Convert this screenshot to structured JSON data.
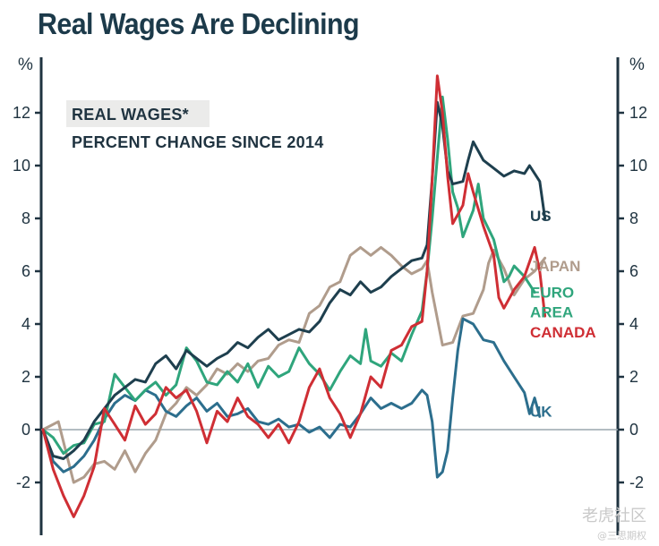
{
  "chart_data": {
    "type": "line",
    "title": "Real Wages Are Declining",
    "subtitle_lines": [
      "REAL WAGES*",
      "PERCENT CHANGE SINCE 2014"
    ],
    "unit_left": "%",
    "unit_right": "%",
    "ylim": [
      -4,
      14
    ],
    "xlim": [
      0,
      100
    ],
    "yticks": [
      -2,
      0,
      2,
      4,
      6,
      8,
      10,
      12
    ],
    "ytick_labels": [
      "-2",
      "0",
      "2",
      "4",
      "6",
      "8",
      "10",
      "12"
    ],
    "grid": false,
    "series": [
      {
        "name": "US",
        "color": "#1e3f4e",
        "points": [
          [
            0,
            0
          ],
          [
            2,
            -1.0
          ],
          [
            4,
            -1.1
          ],
          [
            6,
            -0.8
          ],
          [
            8,
            -0.4
          ],
          [
            10,
            0.3
          ],
          [
            12,
            0.8
          ],
          [
            14,
            1.3
          ],
          [
            16,
            1.6
          ],
          [
            18,
            1.9
          ],
          [
            20,
            1.8
          ],
          [
            22,
            2.5
          ],
          [
            24,
            2.8
          ],
          [
            26,
            2.3
          ],
          [
            28,
            3.0
          ],
          [
            30,
            2.7
          ],
          [
            32,
            2.4
          ],
          [
            34,
            2.7
          ],
          [
            36,
            2.9
          ],
          [
            38,
            3.3
          ],
          [
            40,
            3.1
          ],
          [
            42,
            3.5
          ],
          [
            44,
            3.8
          ],
          [
            46,
            3.4
          ],
          [
            48,
            3.6
          ],
          [
            50,
            3.8
          ],
          [
            52,
            3.7
          ],
          [
            54,
            4.1
          ],
          [
            56,
            4.8
          ],
          [
            58,
            5.3
          ],
          [
            60,
            5.1
          ],
          [
            62,
            5.6
          ],
          [
            64,
            5.2
          ],
          [
            66,
            5.4
          ],
          [
            68,
            5.8
          ],
          [
            70,
            6.1
          ],
          [
            72,
            6.4
          ],
          [
            74,
            6.5
          ],
          [
            75,
            7.0
          ],
          [
            76,
            9.5
          ],
          [
            77,
            12.4
          ],
          [
            78,
            11.5
          ],
          [
            79,
            9.8
          ],
          [
            80,
            9.3
          ],
          [
            82,
            9.4
          ],
          [
            83,
            10.2
          ],
          [
            84,
            10.9
          ],
          [
            86,
            10.2
          ],
          [
            88,
            9.9
          ],
          [
            90,
            9.6
          ],
          [
            92,
            9.8
          ],
          [
            94,
            9.7
          ],
          [
            95,
            10.0
          ],
          [
            97,
            9.4
          ],
          [
            98,
            8.0
          ]
        ]
      },
      {
        "name": "EURO AREA",
        "color": "#2fa57c",
        "points": [
          [
            0,
            0
          ],
          [
            2,
            -0.3
          ],
          [
            4,
            -0.9
          ],
          [
            6,
            -0.6
          ],
          [
            8,
            -0.5
          ],
          [
            10,
            0.2
          ],
          [
            12,
            0.3
          ],
          [
            14,
            2.1
          ],
          [
            16,
            1.6
          ],
          [
            18,
            1.1
          ],
          [
            20,
            1.5
          ],
          [
            22,
            1.8
          ],
          [
            24,
            1.3
          ],
          [
            26,
            1.7
          ],
          [
            28,
            3.1
          ],
          [
            30,
            2.6
          ],
          [
            32,
            1.8
          ],
          [
            34,
            1.7
          ],
          [
            36,
            2.2
          ],
          [
            38,
            1.8
          ],
          [
            40,
            2.5
          ],
          [
            42,
            1.6
          ],
          [
            44,
            2.4
          ],
          [
            46,
            2.0
          ],
          [
            48,
            2.2
          ],
          [
            50,
            3.1
          ],
          [
            52,
            2.5
          ],
          [
            54,
            2.1
          ],
          [
            56,
            1.5
          ],
          [
            58,
            2.2
          ],
          [
            60,
            2.8
          ],
          [
            62,
            2.5
          ],
          [
            63,
            3.8
          ],
          [
            64,
            2.6
          ],
          [
            66,
            2.4
          ],
          [
            68,
            2.9
          ],
          [
            70,
            2.6
          ],
          [
            72,
            3.6
          ],
          [
            74,
            4.5
          ],
          [
            75,
            6.0
          ],
          [
            76,
            8.0
          ],
          [
            77,
            10.3
          ],
          [
            78,
            12.6
          ],
          [
            79,
            11.0
          ],
          [
            80,
            9.0
          ],
          [
            81,
            8.4
          ],
          [
            82,
            7.3
          ],
          [
            84,
            8.3
          ],
          [
            85,
            9.3
          ],
          [
            86,
            8.0
          ],
          [
            88,
            7.2
          ],
          [
            90,
            5.6
          ],
          [
            91,
            5.8
          ],
          [
            92,
            6.2
          ],
          [
            94,
            5.8
          ],
          [
            96,
            5.2
          ]
        ]
      },
      {
        "name": "JAPAN",
        "color": "#b09c8c",
        "points": [
          [
            0,
            0
          ],
          [
            3,
            0.3
          ],
          [
            6,
            -2.0
          ],
          [
            8,
            -1.8
          ],
          [
            10,
            -1.3
          ],
          [
            12,
            -1.2
          ],
          [
            14,
            -1.5
          ],
          [
            16,
            -0.8
          ],
          [
            18,
            -1.6
          ],
          [
            20,
            -0.9
          ],
          [
            22,
            -0.4
          ],
          [
            24,
            0.6
          ],
          [
            26,
            1.0
          ],
          [
            28,
            1.6
          ],
          [
            30,
            1.3
          ],
          [
            32,
            1.7
          ],
          [
            34,
            2.3
          ],
          [
            36,
            2.1
          ],
          [
            38,
            2.5
          ],
          [
            40,
            2.2
          ],
          [
            42,
            2.6
          ],
          [
            44,
            2.7
          ],
          [
            46,
            3.2
          ],
          [
            48,
            3.4
          ],
          [
            50,
            3.3
          ],
          [
            52,
            4.4
          ],
          [
            54,
            4.7
          ],
          [
            56,
            5.4
          ],
          [
            58,
            5.6
          ],
          [
            60,
            6.6
          ],
          [
            62,
            6.9
          ],
          [
            64,
            6.6
          ],
          [
            66,
            6.9
          ],
          [
            68,
            6.6
          ],
          [
            70,
            6.2
          ],
          [
            72,
            5.9
          ],
          [
            74,
            6.1
          ],
          [
            75,
            6.4
          ],
          [
            76,
            5.2
          ],
          [
            78,
            3.2
          ],
          [
            80,
            3.3
          ],
          [
            82,
            4.3
          ],
          [
            84,
            4.4
          ],
          [
            86,
            5.3
          ],
          [
            87,
            6.3
          ],
          [
            88,
            6.8
          ],
          [
            90,
            6.1
          ],
          [
            92,
            5.1
          ],
          [
            94,
            5.7
          ],
          [
            96,
            6.0
          ],
          [
            98,
            6.5
          ]
        ]
      },
      {
        "name": "CANADA",
        "color": "#cf2e34",
        "points": [
          [
            0,
            0
          ],
          [
            2,
            -1.5
          ],
          [
            4,
            -2.5
          ],
          [
            6,
            -3.3
          ],
          [
            8,
            -2.5
          ],
          [
            10,
            -1.4
          ],
          [
            12,
            0.8
          ],
          [
            14,
            0.2
          ],
          [
            16,
            -0.4
          ],
          [
            18,
            0.9
          ],
          [
            20,
            0.2
          ],
          [
            22,
            0.6
          ],
          [
            24,
            1.6
          ],
          [
            26,
            1.2
          ],
          [
            28,
            1.5
          ],
          [
            30,
            0.7
          ],
          [
            32,
            -0.5
          ],
          [
            34,
            0.7
          ],
          [
            36,
            0.3
          ],
          [
            38,
            1.2
          ],
          [
            40,
            0.5
          ],
          [
            42,
            0.2
          ],
          [
            44,
            -0.3
          ],
          [
            46,
            0.2
          ],
          [
            48,
            -0.5
          ],
          [
            50,
            0.3
          ],
          [
            52,
            1.6
          ],
          [
            54,
            2.3
          ],
          [
            56,
            1.2
          ],
          [
            58,
            0.6
          ],
          [
            60,
            -0.3
          ],
          [
            62,
            0.6
          ],
          [
            64,
            2.0
          ],
          [
            66,
            1.6
          ],
          [
            68,
            3.0
          ],
          [
            70,
            3.2
          ],
          [
            72,
            3.9
          ],
          [
            74,
            4.1
          ],
          [
            75,
            6.0
          ],
          [
            76,
            9.5
          ],
          [
            77,
            13.4
          ],
          [
            78,
            12.0
          ],
          [
            79,
            9.6
          ],
          [
            80,
            7.8
          ],
          [
            82,
            8.5
          ],
          [
            83,
            9.7
          ],
          [
            84,
            9.0
          ],
          [
            86,
            7.7
          ],
          [
            88,
            6.6
          ],
          [
            89,
            5.0
          ],
          [
            90,
            4.6
          ],
          [
            92,
            5.3
          ],
          [
            94,
            5.8
          ],
          [
            96,
            6.9
          ],
          [
            97,
            6.0
          ],
          [
            98,
            4.3
          ]
        ]
      },
      {
        "name": "UK",
        "color": "#2c6e8d",
        "points": [
          [
            0,
            0
          ],
          [
            2,
            -1.2
          ],
          [
            4,
            -1.6
          ],
          [
            6,
            -1.4
          ],
          [
            8,
            -1.0
          ],
          [
            10,
            -0.4
          ],
          [
            12,
            0.4
          ],
          [
            14,
            1.0
          ],
          [
            16,
            1.3
          ],
          [
            18,
            1.1
          ],
          [
            20,
            1.5
          ],
          [
            22,
            1.3
          ],
          [
            24,
            0.7
          ],
          [
            26,
            0.5
          ],
          [
            28,
            0.9
          ],
          [
            30,
            1.2
          ],
          [
            32,
            0.7
          ],
          [
            34,
            1.0
          ],
          [
            36,
            0.5
          ],
          [
            38,
            0.6
          ],
          [
            40,
            0.8
          ],
          [
            42,
            0.3
          ],
          [
            44,
            0.2
          ],
          [
            46,
            0.4
          ],
          [
            48,
            0.1
          ],
          [
            50,
            0.2
          ],
          [
            52,
            -0.1
          ],
          [
            54,
            0.1
          ],
          [
            56,
            -0.3
          ],
          [
            58,
            0.2
          ],
          [
            60,
            0.1
          ],
          [
            62,
            0.6
          ],
          [
            64,
            1.2
          ],
          [
            66,
            0.8
          ],
          [
            68,
            1.0
          ],
          [
            70,
            0.8
          ],
          [
            72,
            1.0
          ],
          [
            74,
            1.5
          ],
          [
            75,
            1.3
          ],
          [
            76,
            0.3
          ],
          [
            77,
            -1.8
          ],
          [
            78,
            -1.6
          ],
          [
            79,
            -0.8
          ],
          [
            80,
            1.2
          ],
          [
            81,
            3.0
          ],
          [
            82,
            4.2
          ],
          [
            84,
            4.0
          ],
          [
            86,
            3.4
          ],
          [
            88,
            3.3
          ],
          [
            90,
            2.6
          ],
          [
            92,
            2.0
          ],
          [
            94,
            1.4
          ],
          [
            95,
            0.6
          ],
          [
            96,
            1.2
          ],
          [
            97,
            0.5
          ]
        ]
      }
    ],
    "series_labels": [
      {
        "series": "US",
        "lines": [
          "US"
        ],
        "y": 7.9
      },
      {
        "series": "JAPAN",
        "lines": [
          "JAPAN"
        ],
        "y": 6.0
      },
      {
        "series": "EURO AREA",
        "lines": [
          "EURO",
          "AREA"
        ],
        "y": 5.0
      },
      {
        "series": "CANADA",
        "lines": [
          "CANADA"
        ],
        "y": 3.5
      },
      {
        "series": "UK",
        "lines": [
          "UK"
        ],
        "y": 0.5
      }
    ]
  },
  "watermark": {
    "text": "老虎社区",
    "sub": "@三思期权"
  }
}
